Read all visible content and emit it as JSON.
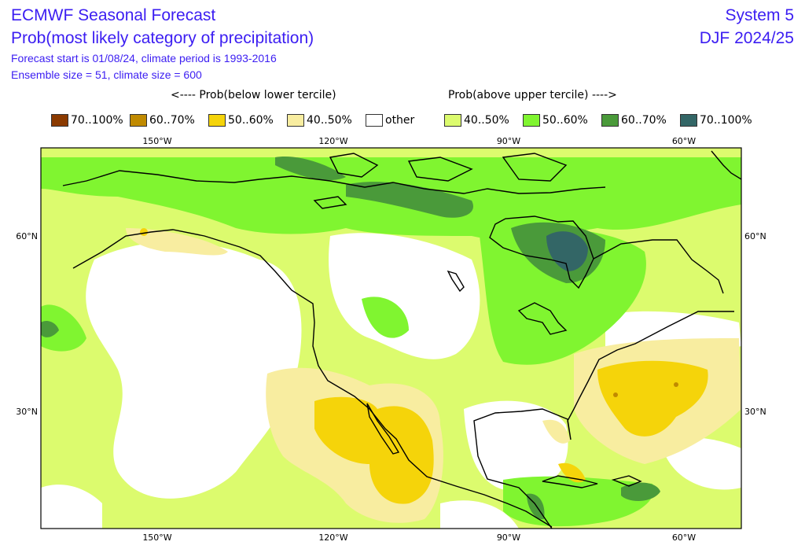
{
  "header": {
    "title": "ECMWF Seasonal Forecast",
    "subtitle": "Prob(most likely category of precipitation)",
    "info_line1": "Forecast start is 01/08/24, climate period is 1993-2016",
    "info_line2": "Ensemble size = 51, climate size = 600",
    "system": "System 5",
    "season": "DJF 2024/25"
  },
  "legend": {
    "below_heading": "<---- Prob(below lower tercile)",
    "above_heading": "Prob(above upper tercile) ---->",
    "items": [
      {
        "label": "70..100%",
        "color": "#8b3a00"
      },
      {
        "label": "60..70%",
        "color": "#c08a00"
      },
      {
        "label": "50..60%",
        "color": "#f5d40a"
      },
      {
        "label": "40..50%",
        "color": "#f8eda0"
      },
      {
        "label": "other",
        "color": "#ffffff"
      },
      {
        "label": "40..50%",
        "color": "#dcfb6e"
      },
      {
        "label": "50..60%",
        "color": "#80f530"
      },
      {
        "label": "60..70%",
        "color": "#4a9a3a"
      },
      {
        "label": "70..100%",
        "color": "#336666"
      }
    ]
  },
  "map": {
    "lon_labels": [
      "150°W",
      "120°W",
      "90°W",
      "60°W"
    ],
    "lat_labels": [
      "60°N",
      "30°N"
    ]
  }
}
